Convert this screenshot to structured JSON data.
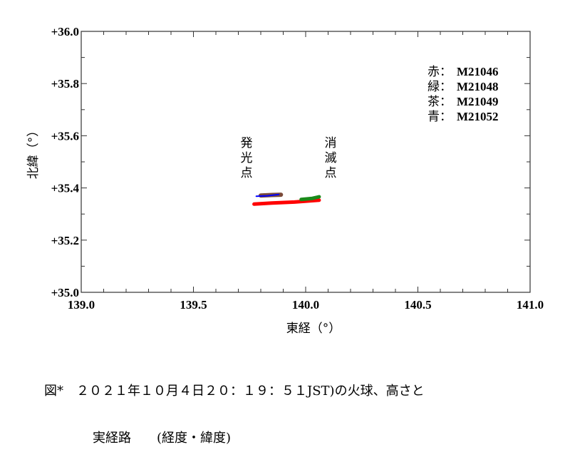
{
  "chart_data": {
    "type": "scatter",
    "title": "",
    "xlabel": "東経（°）",
    "ylabel": "北緯（°）",
    "xlim": [
      139.0,
      141.0
    ],
    "ylim": [
      35.0,
      36.0
    ],
    "x_ticks": [
      "139.0",
      "139.5",
      "140.0",
      "140.5",
      "141.0"
    ],
    "y_ticks": [
      "+35.0",
      "+35.2",
      "+35.4",
      "+35.6",
      "+35.8",
      "+36.0"
    ],
    "grid": false,
    "legend_position": "upper right (inside)",
    "legend": [
      {
        "color_name": "赤",
        "label": "M21046",
        "color": "#ff0000"
      },
      {
        "color_name": "緑",
        "label": "M21048",
        "color": "#1a8a1a"
      },
      {
        "color_name": "茶",
        "label": "M21049",
        "color": "#7a4a3a"
      },
      {
        "color_name": "青",
        "label": "M21052",
        "color": "#0000ff"
      }
    ],
    "annotations": [
      {
        "text": "発光点",
        "x": 139.74,
        "y": 35.55,
        "vertical": true
      },
      {
        "text": "消滅点",
        "x": 140.05,
        "y": 35.55,
        "vertical": true
      }
    ],
    "series": [
      {
        "name": "M21046",
        "color": "#ff0000",
        "width": 5,
        "points": [
          [
            139.77,
            35.338
          ],
          [
            139.85,
            35.342
          ],
          [
            139.95,
            35.346
          ],
          [
            140.06,
            35.353
          ]
        ]
      },
      {
        "name": "M21048",
        "color": "#1a8a1a",
        "width": 5,
        "points": [
          [
            139.98,
            35.356
          ],
          [
            140.03,
            35.36
          ],
          [
            140.06,
            35.366
          ]
        ]
      },
      {
        "name": "M21049",
        "color": "#7a4a3a",
        "width": 6,
        "points": [
          [
            139.8,
            35.371
          ],
          [
            139.85,
            35.373
          ],
          [
            139.89,
            35.374
          ]
        ]
      },
      {
        "name": "M21052",
        "color": "#0000ff",
        "width": 2,
        "points": [
          [
            139.78,
            35.368
          ],
          [
            139.83,
            35.37
          ],
          [
            139.88,
            35.375
          ]
        ]
      }
    ]
  },
  "caption": {
    "line1": "図*　２０２１年１０月４日２０：１９：５１JST)の火球、高さと",
    "line2": "実経路　　(経度・緯度)"
  }
}
